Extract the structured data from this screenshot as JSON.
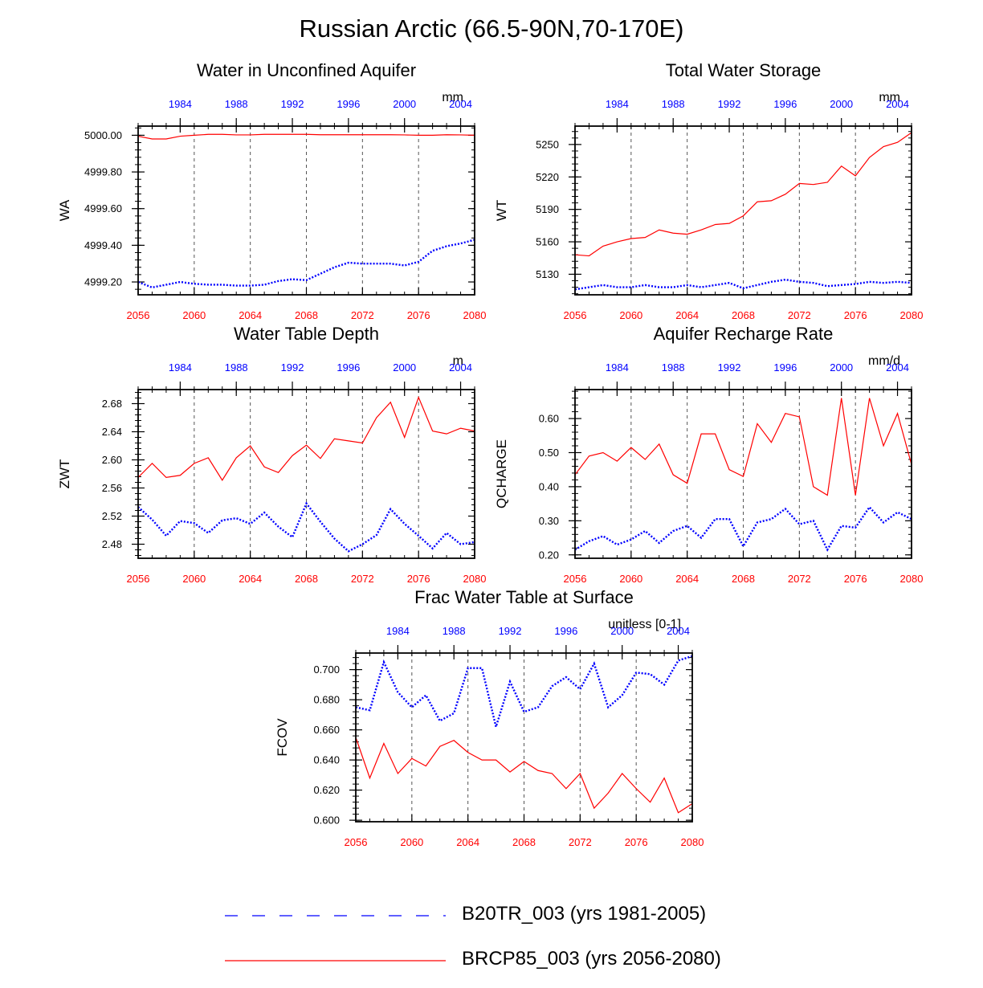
{
  "figure": {
    "title": "Russian Arctic (66.5-90N,70-170E)",
    "colors": {
      "historical": "#0000ff",
      "future": "#ff0000",
      "axis": "#000000",
      "grid": "#555555"
    }
  },
  "legend": {
    "items": [
      {
        "label": "B20TR_003 (yrs 1981-2005)",
        "series": "historical",
        "style": "dashed"
      },
      {
        "label": "BRCP85_003 (yrs 2056-2080)",
        "series": "future",
        "style": "solid"
      }
    ]
  },
  "chart_data": [
    {
      "type": "line",
      "title": "Water in Unconfined Aquifer",
      "ylabel": "WA",
      "units": "mm",
      "ylim": [
        4999.13,
        5000.05
      ],
      "yticks": [
        4999.2,
        4999.4,
        4999.6,
        4999.8,
        5000.0
      ],
      "ytick_labels": [
        "4999.20",
        "4999.40",
        "4999.60",
        "4999.80",
        "5000.00"
      ],
      "x_bottom": {
        "range": [
          2056,
          2080
        ],
        "ticks": [
          2056,
          2060,
          2064,
          2068,
          2072,
          2076,
          2080
        ]
      },
      "x_top": {
        "range": [
          1981,
          2005
        ],
        "ticks": [
          1984,
          1988,
          1992,
          1996,
          2000,
          2004
        ]
      },
      "series": [
        {
          "name": "BRCP85_003 (yrs 2056-2080)",
          "key": "future",
          "values": [
            4999.995,
            4999.98,
            4999.98,
            4999.995,
            5000.0,
            5000.005,
            5000.005,
            5000.002,
            5000.002,
            5000.005,
            5000.005,
            5000.005,
            5000.005,
            5000.003,
            5000.003,
            5000.003,
            5000.003,
            5000.003,
            5000.003,
            5000.002,
            5000.0,
            5000.0,
            5000.003,
            5000.002,
            5000.0
          ]
        },
        {
          "name": "B20TR_003 (yrs 1981-2005)",
          "key": "historical",
          "values": [
            4999.2,
            4999.17,
            4999.185,
            4999.2,
            4999.19,
            4999.185,
            4999.185,
            4999.18,
            4999.18,
            4999.185,
            4999.205,
            4999.215,
            4999.21,
            4999.245,
            4999.28,
            4999.305,
            4999.3,
            4999.3,
            4999.3,
            4999.29,
            4999.31,
            4999.37,
            4999.395,
            4999.41,
            4999.43
          ]
        }
      ]
    },
    {
      "type": "line",
      "title": "Total Water Storage",
      "ylabel": "WT",
      "units": "mm",
      "ylim": [
        5111,
        5267
      ],
      "yticks": [
        5130,
        5160,
        5190,
        5220,
        5250
      ],
      "ytick_labels": [
        "5130",
        "5160",
        "5190",
        "5220",
        "5250"
      ],
      "x_bottom": {
        "range": [
          2056,
          2080
        ],
        "ticks": [
          2056,
          2060,
          2064,
          2068,
          2072,
          2076,
          2080
        ]
      },
      "x_top": {
        "range": [
          1981,
          2005
        ],
        "ticks": [
          1984,
          1988,
          1992,
          1996,
          2000,
          2004
        ]
      },
      "series": [
        {
          "name": "BRCP85_003 (yrs 2056-2080)",
          "key": "future",
          "values": [
            5148,
            5147,
            5156,
            5160,
            5163,
            5164,
            5171,
            5168,
            5167,
            5171,
            5176,
            5177,
            5184,
            5197,
            5198,
            5204,
            5214,
            5213,
            5215,
            5230,
            5221,
            5238,
            5248,
            5252,
            5261
          ]
        },
        {
          "name": "B20TR_003 (yrs 1981-2005)",
          "key": "historical",
          "values": [
            5116,
            5118,
            5120,
            5118,
            5118,
            5120,
            5118,
            5118,
            5120,
            5118,
            5120,
            5122,
            5117,
            5120,
            5123,
            5125,
            5123,
            5122,
            5119,
            5120,
            5121,
            5123,
            5122,
            5123,
            5122
          ]
        }
      ]
    },
    {
      "type": "line",
      "title": "Water Table Depth",
      "ylabel": "ZWT",
      "units": "m",
      "ylim": [
        2.46,
        2.7
      ],
      "yticks": [
        2.48,
        2.52,
        2.56,
        2.6,
        2.64,
        2.68
      ],
      "ytick_labels": [
        "2.48",
        "2.52",
        "2.56",
        "2.60",
        "2.64",
        "2.68"
      ],
      "x_bottom": {
        "range": [
          2056,
          2080
        ],
        "ticks": [
          2056,
          2060,
          2064,
          2068,
          2072,
          2076,
          2080
        ]
      },
      "x_top": {
        "range": [
          1981,
          2005
        ],
        "ticks": [
          1984,
          1988,
          1992,
          1996,
          2000,
          2004
        ]
      },
      "series": [
        {
          "name": "BRCP85_003 (yrs 2056-2080)",
          "key": "future",
          "values": [
            2.575,
            2.595,
            2.575,
            2.578,
            2.595,
            2.603,
            2.571,
            2.603,
            2.62,
            2.59,
            2.582,
            2.606,
            2.621,
            2.602,
            2.63,
            2.627,
            2.624,
            2.66,
            2.682,
            2.632,
            2.689,
            2.641,
            2.637,
            2.645,
            2.641
          ]
        },
        {
          "name": "B20TR_003 (yrs 1981-2005)",
          "key": "historical",
          "values": [
            2.533,
            2.515,
            2.492,
            2.513,
            2.51,
            2.496,
            2.514,
            2.517,
            2.509,
            2.525,
            2.505,
            2.49,
            2.538,
            2.512,
            2.488,
            2.47,
            2.48,
            2.493,
            2.53,
            2.509,
            2.492,
            2.474,
            2.496,
            2.48,
            2.483
          ]
        }
      ]
    },
    {
      "type": "line",
      "title": "Aquifer Recharge Rate",
      "ylabel": "QCHARGE",
      "units": "mm/d",
      "ylim": [
        0.19,
        0.685
      ],
      "yticks": [
        0.2,
        0.3,
        0.4,
        0.5,
        0.6
      ],
      "ytick_labels": [
        "0.20",
        "0.30",
        "0.40",
        "0.50",
        "0.60"
      ],
      "x_bottom": {
        "range": [
          2056,
          2080
        ],
        "ticks": [
          2056,
          2060,
          2064,
          2068,
          2072,
          2076,
          2080
        ]
      },
      "x_top": {
        "range": [
          1981,
          2005
        ],
        "ticks": [
          1984,
          1988,
          1992,
          1996,
          2000,
          2004
        ]
      },
      "series": [
        {
          "name": "BRCP85_003 (yrs 2056-2080)",
          "key": "future",
          "values": [
            0.435,
            0.49,
            0.5,
            0.475,
            0.515,
            0.48,
            0.525,
            0.435,
            0.41,
            0.555,
            0.555,
            0.45,
            0.43,
            0.585,
            0.53,
            0.615,
            0.605,
            0.4,
            0.375,
            0.66,
            0.375,
            0.66,
            0.52,
            0.615,
            0.465
          ]
        },
        {
          "name": "B20TR_003 (yrs 1981-2005)",
          "key": "historical",
          "values": [
            0.215,
            0.24,
            0.255,
            0.23,
            0.245,
            0.27,
            0.235,
            0.27,
            0.285,
            0.25,
            0.305,
            0.305,
            0.225,
            0.295,
            0.305,
            0.335,
            0.29,
            0.3,
            0.215,
            0.285,
            0.28,
            0.34,
            0.295,
            0.325,
            0.305
          ]
        }
      ]
    },
    {
      "type": "line",
      "title": "Frac Water Table at Surface",
      "ylabel": "FCOV",
      "units": "unitless [0-1]",
      "ylim": [
        0.599,
        0.711
      ],
      "yticks": [
        0.6,
        0.62,
        0.64,
        0.66,
        0.68,
        0.7
      ],
      "ytick_labels": [
        "0.600",
        "0.620",
        "0.640",
        "0.660",
        "0.680",
        "0.700"
      ],
      "x_bottom": {
        "range": [
          2056,
          2080
        ],
        "ticks": [
          2056,
          2060,
          2064,
          2068,
          2072,
          2076,
          2080
        ]
      },
      "x_top": {
        "range": [
          1981,
          2005
        ],
        "ticks": [
          1984,
          1988,
          1992,
          1996,
          2000,
          2004
        ]
      },
      "series": [
        {
          "name": "BRCP85_003 (yrs 2056-2080)",
          "key": "future",
          "values": [
            0.655,
            0.628,
            0.651,
            0.631,
            0.641,
            0.636,
            0.649,
            0.653,
            0.645,
            0.64,
            0.64,
            0.632,
            0.639,
            0.633,
            0.631,
            0.621,
            0.631,
            0.608,
            0.618,
            0.631,
            0.621,
            0.612,
            0.628,
            0.605,
            0.611
          ]
        },
        {
          "name": "B20TR_003 (yrs 1981-2005)",
          "key": "historical",
          "values": [
            0.675,
            0.673,
            0.705,
            0.685,
            0.675,
            0.683,
            0.666,
            0.671,
            0.701,
            0.701,
            0.662,
            0.692,
            0.672,
            0.675,
            0.689,
            0.695,
            0.687,
            0.704,
            0.675,
            0.683,
            0.698,
            0.697,
            0.69,
            0.706,
            0.709
          ]
        }
      ]
    }
  ]
}
